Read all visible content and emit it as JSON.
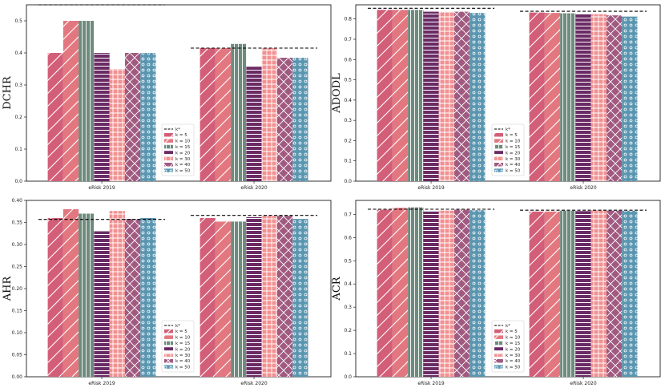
{
  "chart_data": [
    {
      "type": "bar",
      "ylabel": "DCHR",
      "categories": [
        "eRisk 2019",
        "eRisk 2020"
      ],
      "ylim": [
        0.0,
        0.55
      ],
      "yticks": [
        "0.0",
        "0.1",
        "0.2",
        "0.3",
        "0.4",
        "0.5"
      ],
      "ytick_values": [
        0.0,
        0.1,
        0.2,
        0.3,
        0.4,
        0.5
      ],
      "kstar": [
        0.55,
        0.415
      ],
      "series": [
        {
          "name": "k = 5",
          "values": [
            0.4,
            0.415
          ]
        },
        {
          "name": "k = 10",
          "values": [
            0.5,
            0.415
          ]
        },
        {
          "name": "k = 15",
          "values": [
            0.5,
            0.428
          ]
        },
        {
          "name": "k = 20",
          "values": [
            0.4,
            0.357
          ]
        },
        {
          "name": "k = 30",
          "values": [
            0.35,
            0.415
          ]
        },
        {
          "name": "k = 40",
          "values": [
            0.4,
            0.385
          ]
        },
        {
          "name": "k = 50",
          "values": [
            0.4,
            0.385
          ]
        }
      ]
    },
    {
      "type": "bar",
      "ylabel": "ADODL",
      "categories": [
        "eRisk 2019",
        "eRisk 2020"
      ],
      "ylim": [
        0.0,
        0.87
      ],
      "yticks": [
        "0.0",
        "0.1",
        "0.2",
        "0.3",
        "0.4",
        "0.5",
        "0.6",
        "0.7",
        "0.8"
      ],
      "ytick_values": [
        0.0,
        0.1,
        0.2,
        0.3,
        0.4,
        0.5,
        0.6,
        0.7,
        0.8
      ],
      "kstar": [
        0.853,
        0.838
      ],
      "series": [
        {
          "name": "k = 5",
          "values": [
            0.845,
            0.832
          ]
        },
        {
          "name": "k = 10",
          "values": [
            0.845,
            0.83
          ]
        },
        {
          "name": "k = 15",
          "values": [
            0.845,
            0.828
          ]
        },
        {
          "name": "k = 20",
          "values": [
            0.836,
            0.826
          ]
        },
        {
          "name": "k = 30",
          "values": [
            0.836,
            0.824
          ]
        },
        {
          "name": "k = 40",
          "values": [
            0.836,
            0.818
          ]
        },
        {
          "name": "k = 50",
          "values": [
            0.83,
            0.812
          ]
        }
      ]
    },
    {
      "type": "bar",
      "ylabel": "AHR",
      "categories": [
        "eRisk 2019",
        "eRisk 2020"
      ],
      "ylim": [
        0.0,
        0.4
      ],
      "yticks": [
        "0.00",
        "0.05",
        "0.10",
        "0.15",
        "0.20",
        "0.25",
        "0.30",
        "0.35",
        "0.40"
      ],
      "ytick_values": [
        0.0,
        0.05,
        0.1,
        0.15,
        0.2,
        0.25,
        0.3,
        0.35,
        0.4
      ],
      "kstar": [
        0.357,
        0.366
      ],
      "series": [
        {
          "name": "k = 5",
          "values": [
            0.36,
            0.36
          ]
        },
        {
          "name": "k = 10",
          "values": [
            0.38,
            0.352
          ]
        },
        {
          "name": "k = 15",
          "values": [
            0.37,
            0.352
          ]
        },
        {
          "name": "k = 20",
          "values": [
            0.33,
            0.362
          ]
        },
        {
          "name": "k = 30",
          "values": [
            0.376,
            0.365
          ]
        },
        {
          "name": "k = 40",
          "values": [
            0.358,
            0.365
          ]
        },
        {
          "name": "k = 50",
          "values": [
            0.36,
            0.358
          ]
        }
      ]
    },
    {
      "type": "bar",
      "ylabel": "ACR",
      "categories": [
        "eRisk 2019",
        "eRisk 2020"
      ],
      "ylim": [
        0.0,
        0.76
      ],
      "yticks": [
        "0.0",
        "0.1",
        "0.2",
        "0.3",
        "0.4",
        "0.5",
        "0.6",
        "0.7"
      ],
      "ytick_values": [
        0.0,
        0.1,
        0.2,
        0.3,
        0.4,
        0.5,
        0.6,
        0.7
      ],
      "kstar": [
        0.722,
        0.718
      ],
      "series": [
        {
          "name": "k = 5",
          "values": [
            0.72,
            0.712
          ]
        },
        {
          "name": "k = 10",
          "values": [
            0.728,
            0.712
          ]
        },
        {
          "name": "k = 15",
          "values": [
            0.73,
            0.716
          ]
        },
        {
          "name": "k = 20",
          "values": [
            0.712,
            0.714
          ]
        },
        {
          "name": "k = 30",
          "values": [
            0.716,
            0.717
          ]
        },
        {
          "name": "k = 40",
          "values": [
            0.72,
            0.716
          ]
        },
        {
          "name": "k = 50",
          "values": [
            0.718,
            0.715
          ]
        }
      ]
    }
  ],
  "legend": {
    "kstar_label": "k*"
  },
  "colors": [
    "#d35e78",
    "#e37780",
    "#6e8b7d",
    "#6a2b65",
    "#f19192",
    "#a05a80",
    "#5a96b0"
  ]
}
